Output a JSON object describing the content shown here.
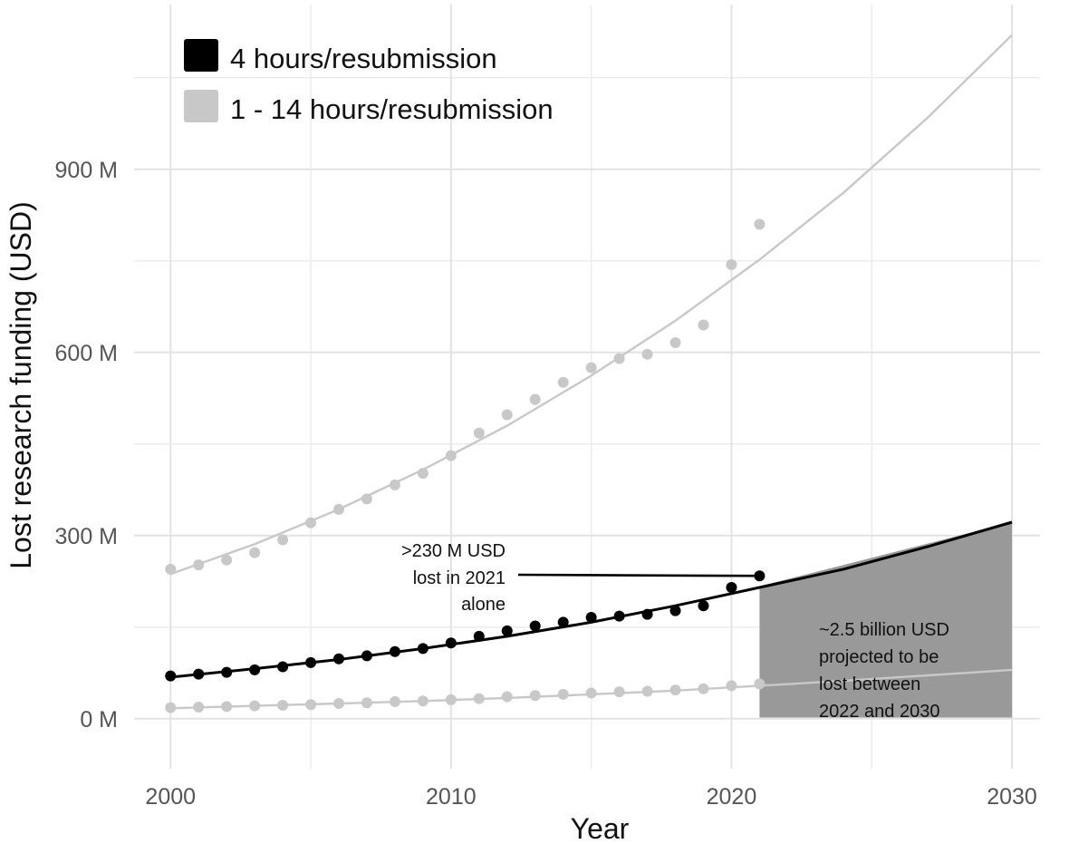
{
  "chart_data": {
    "type": "scatter",
    "xlabel": "Year",
    "ylabel": "Lost research funding (USD)",
    "xlim": [
      1998.7,
      2031
    ],
    "ylim": [
      -82,
      1170
    ],
    "x_ticks": [
      2000,
      2010,
      2020,
      2030
    ],
    "x_tick_labels": [
      "2000",
      "2010",
      "2020",
      "2030"
    ],
    "y_ticks": [
      0,
      300,
      600,
      900
    ],
    "y_tick_labels": [
      "0 M",
      "300 M",
      "600 M",
      "900 M"
    ],
    "grid": true,
    "legend": {
      "placement": "top-left",
      "entries": [
        {
          "label": "4 hours/resubmission",
          "color": "#000000"
        },
        {
          "label": "1 - 14 hours/resubmission",
          "color": "#c8c8c8"
        }
      ]
    },
    "series": [
      {
        "name": "4 hours/resubmission",
        "color": "#000000",
        "x": [
          2000,
          2001,
          2002,
          2003,
          2004,
          2005,
          2006,
          2007,
          2008,
          2009,
          2010,
          2011,
          2012,
          2013,
          2014,
          2015,
          2016,
          2017,
          2018,
          2019,
          2020,
          2021
        ],
        "values": [
          70,
          73,
          76,
          80,
          85,
          92,
          98,
          103,
          110,
          115,
          124,
          135,
          144,
          152,
          158,
          166,
          168,
          171,
          177,
          185,
          215,
          234
        ],
        "trend": {
          "x": [
            2000,
            2003,
            2006,
            2009,
            2012,
            2015,
            2018,
            2021,
            2024,
            2027,
            2030
          ],
          "values": [
            68,
            82,
            97,
            115,
            135,
            158,
            185,
            215,
            245,
            282,
            322
          ]
        }
      },
      {
        "name": "1 - 14 hours/resubmission",
        "color": "#c8c8c8",
        "x": [
          2000,
          2001,
          2002,
          2003,
          2004,
          2005,
          2006,
          2007,
          2008,
          2009,
          2010,
          2011,
          2012,
          2013,
          2014,
          2015,
          2016,
          2017,
          2018,
          2019,
          2020,
          2021
        ],
        "values": [
          245,
          252,
          260,
          272,
          293,
          321,
          343,
          360,
          383,
          402,
          431,
          468,
          498,
          523,
          551,
          575,
          590,
          597,
          616,
          645,
          744,
          810
        ],
        "trend": {
          "x": [
            2000,
            2003,
            2006,
            2009,
            2012,
            2015,
            2018,
            2021,
            2024,
            2027,
            2030
          ],
          "values": [
            237,
            286,
            343,
            408,
            480,
            562,
            652,
            752,
            862,
            985,
            1120
          ]
        }
      },
      {
        "name": "1 - 14 hours/resubmission",
        "color": "#c8c8c8",
        "x": [
          2000,
          2001,
          2002,
          2003,
          2004,
          2005,
          2006,
          2007,
          2008,
          2009,
          2010,
          2011,
          2012,
          2013,
          2014,
          2015,
          2016,
          2017,
          2018,
          2019,
          2020,
          2021
        ],
        "values": [
          18,
          19,
          20,
          21,
          22,
          23,
          25,
          26,
          28,
          29,
          31,
          33,
          36,
          38,
          40,
          42,
          44,
          45,
          47,
          49,
          54,
          57
        ],
        "trend": {
          "x": [
            2000,
            2003,
            2006,
            2009,
            2012,
            2015,
            2018,
            2021,
            2024,
            2027,
            2030
          ],
          "values": [
            17,
            21,
            25,
            29,
            34,
            40,
            46,
            54,
            62,
            71,
            80
          ]
        }
      }
    ],
    "projection_area": {
      "x": [
        2021,
        2030
      ],
      "lower": [
        2,
        2
      ],
      "upper": [
        217,
        322
      ],
      "color": "#999999"
    },
    "annotations": [
      {
        "lines": [
          ">230 M USD",
          "lost in 2021",
          "alone"
        ],
        "arrow_to": {
          "x": 2021,
          "y": 234
        }
      },
      {
        "lines": [
          "~2.5 billion USD",
          "projected to be",
          "lost between",
          "2022 and 2030"
        ]
      }
    ]
  }
}
